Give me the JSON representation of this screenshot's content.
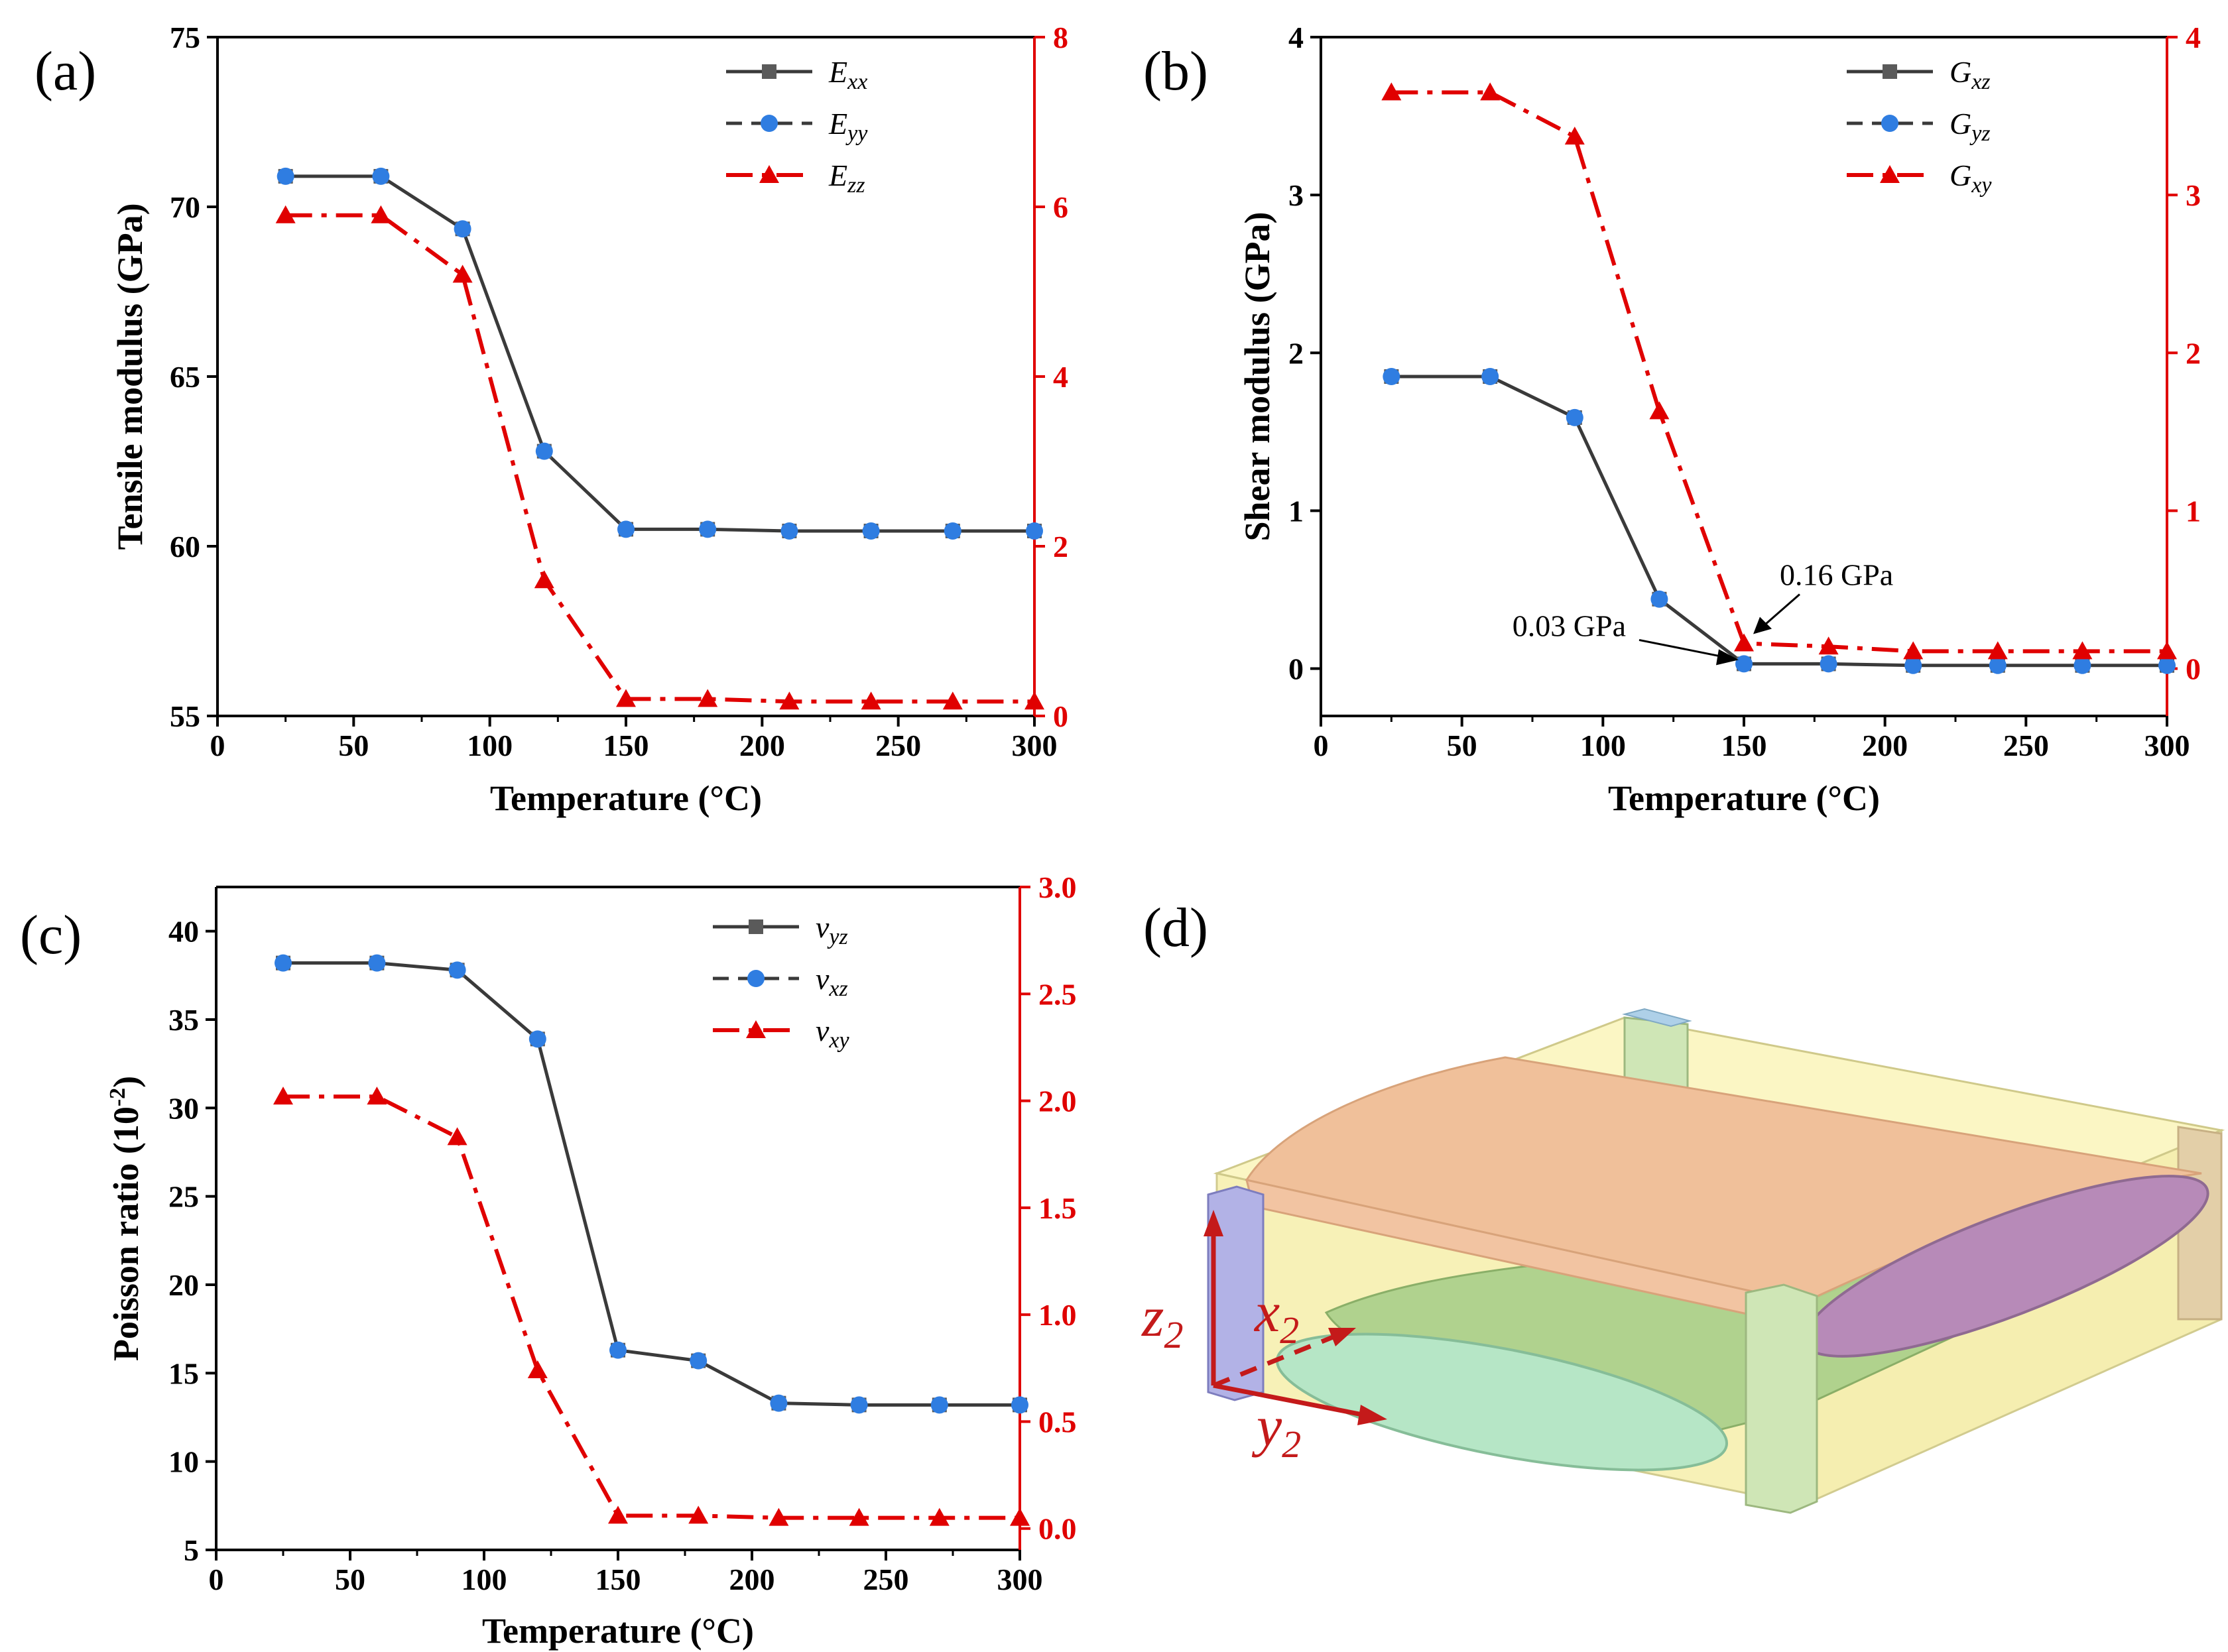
{
  "figure": {
    "colors": {
      "black_series": "#3a3a3a",
      "blue_marker": "#2f7de1",
      "red_series": "#e00000",
      "axis": "#000000",
      "arrow3d": "#c41a1a"
    }
  },
  "chart_data": [
    {
      "panel": "(a)",
      "type": "line",
      "xlabel": "Temperature (°C)",
      "ylabel": "Tensile modulus (GPa)",
      "ylabel_right": "",
      "xlim": [
        0,
        300
      ],
      "ylim": [
        55,
        75
      ],
      "ylim_right": [
        0,
        8
      ],
      "xticks": [
        0,
        50,
        100,
        150,
        200,
        250,
        300
      ],
      "yticks": [
        55,
        60,
        65,
        70,
        75
      ],
      "yticks_right": [
        0,
        2,
        4,
        6,
        8
      ],
      "x": [
        25,
        60,
        90,
        120,
        150,
        180,
        210,
        240,
        270,
        300
      ],
      "series": [
        {
          "name": "E",
          "sub": "xx",
          "axis": "left",
          "style": "solid-black-square",
          "values": [
            70.9,
            70.9,
            69.35,
            62.8,
            60.5,
            60.5,
            60.45,
            60.45,
            60.45,
            60.45
          ]
        },
        {
          "name": "E",
          "sub": "yy",
          "axis": "left",
          "style": "dash-blue-circle",
          "values": [
            70.9,
            70.9,
            69.35,
            62.8,
            60.5,
            60.5,
            60.45,
            60.45,
            60.45,
            60.45
          ]
        },
        {
          "name": "E",
          "sub": "zz",
          "axis": "right",
          "style": "dashdot-red-triangle",
          "values": [
            5.9,
            5.9,
            5.2,
            1.6,
            0.2,
            0.2,
            0.17,
            0.17,
            0.17,
            0.17
          ]
        }
      ],
      "annotations": [],
      "legend": "top-right"
    },
    {
      "panel": "(b)",
      "type": "line",
      "xlabel": "Temperature (°C)",
      "ylabel": "Shear modulus (GPa)",
      "ylabel_right": "",
      "xlim": [
        0,
        300
      ],
      "ylim": [
        -0.3,
        4
      ],
      "ylim_right": [
        -0.3,
        4
      ],
      "xticks": [
        0,
        50,
        100,
        150,
        200,
        250,
        300
      ],
      "yticks": [
        0,
        1,
        2,
        3,
        4
      ],
      "yticks_right": [
        0,
        1,
        2,
        3,
        4
      ],
      "x": [
        25,
        60,
        90,
        120,
        150,
        180,
        210,
        240,
        270,
        300
      ],
      "series": [
        {
          "name": "G",
          "sub": "xz",
          "axis": "left",
          "style": "solid-black-square",
          "values": [
            1.85,
            1.85,
            1.59,
            0.44,
            0.03,
            0.03,
            0.02,
            0.02,
            0.02,
            0.02
          ]
        },
        {
          "name": "G",
          "sub": "yz",
          "axis": "left",
          "style": "dash-blue-circle",
          "values": [
            1.85,
            1.85,
            1.59,
            0.44,
            0.03,
            0.03,
            0.02,
            0.02,
            0.02,
            0.02
          ]
        },
        {
          "name": "G",
          "sub": "xy",
          "axis": "right",
          "style": "dashdot-red-triangle",
          "values": [
            3.65,
            3.65,
            3.37,
            1.63,
            0.16,
            0.14,
            0.11,
            0.11,
            0.11,
            0.11
          ]
        }
      ],
      "annotations": [
        {
          "text": "0.16 GPa",
          "x": 150,
          "y": 0.16,
          "axis": "right"
        },
        {
          "text": "0.03 GPa",
          "x": 150,
          "y": 0.03,
          "axis": "left"
        }
      ],
      "legend": "top-right"
    },
    {
      "panel": "(c)",
      "type": "line",
      "xlabel": "Temperature (°C)",
      "ylabel": "Poisson ratio (10",
      "ylabel_sup": "-2",
      "ylabel_end": ")",
      "xlim": [
        0,
        300
      ],
      "ylim": [
        5,
        42.5
      ],
      "ylim_right": [
        -0.1,
        3.0
      ],
      "xticks": [
        0,
        50,
        100,
        150,
        200,
        250,
        300
      ],
      "yticks": [
        5,
        10,
        15,
        20,
        25,
        30,
        35,
        40
      ],
      "yticks_right": [
        "0.0",
        "0.5",
        "1.0",
        "1.5",
        "2.0",
        "2.5",
        "3.0"
      ],
      "x": [
        25,
        60,
        90,
        120,
        150,
        180,
        210,
        240,
        270,
        300
      ],
      "series": [
        {
          "name": "v",
          "sub": "yz",
          "axis": "left",
          "style": "solid-black-square",
          "values": [
            38.2,
            38.2,
            37.8,
            33.9,
            16.3,
            15.7,
            13.3,
            13.2,
            13.2,
            13.2
          ]
        },
        {
          "name": "v",
          "sub": "xz",
          "axis": "left",
          "style": "dash-blue-circle",
          "values": [
            38.2,
            38.2,
            37.8,
            33.9,
            16.3,
            15.7,
            13.3,
            13.2,
            13.2,
            13.2
          ]
        },
        {
          "name": "v",
          "sub": "xy",
          "axis": "right",
          "style": "dashdot-red-triangle",
          "values": [
            2.02,
            2.02,
            1.83,
            0.74,
            0.06,
            0.06,
            0.05,
            0.05,
            0.05,
            0.05
          ]
        }
      ],
      "annotations": [],
      "legend": "top-right"
    }
  ],
  "panel_d": {
    "label": "(d)",
    "axes": [
      {
        "letter": "z",
        "sub": "2"
      },
      {
        "letter": "x",
        "sub": "2"
      },
      {
        "letter": "y",
        "sub": "2"
      }
    ]
  }
}
